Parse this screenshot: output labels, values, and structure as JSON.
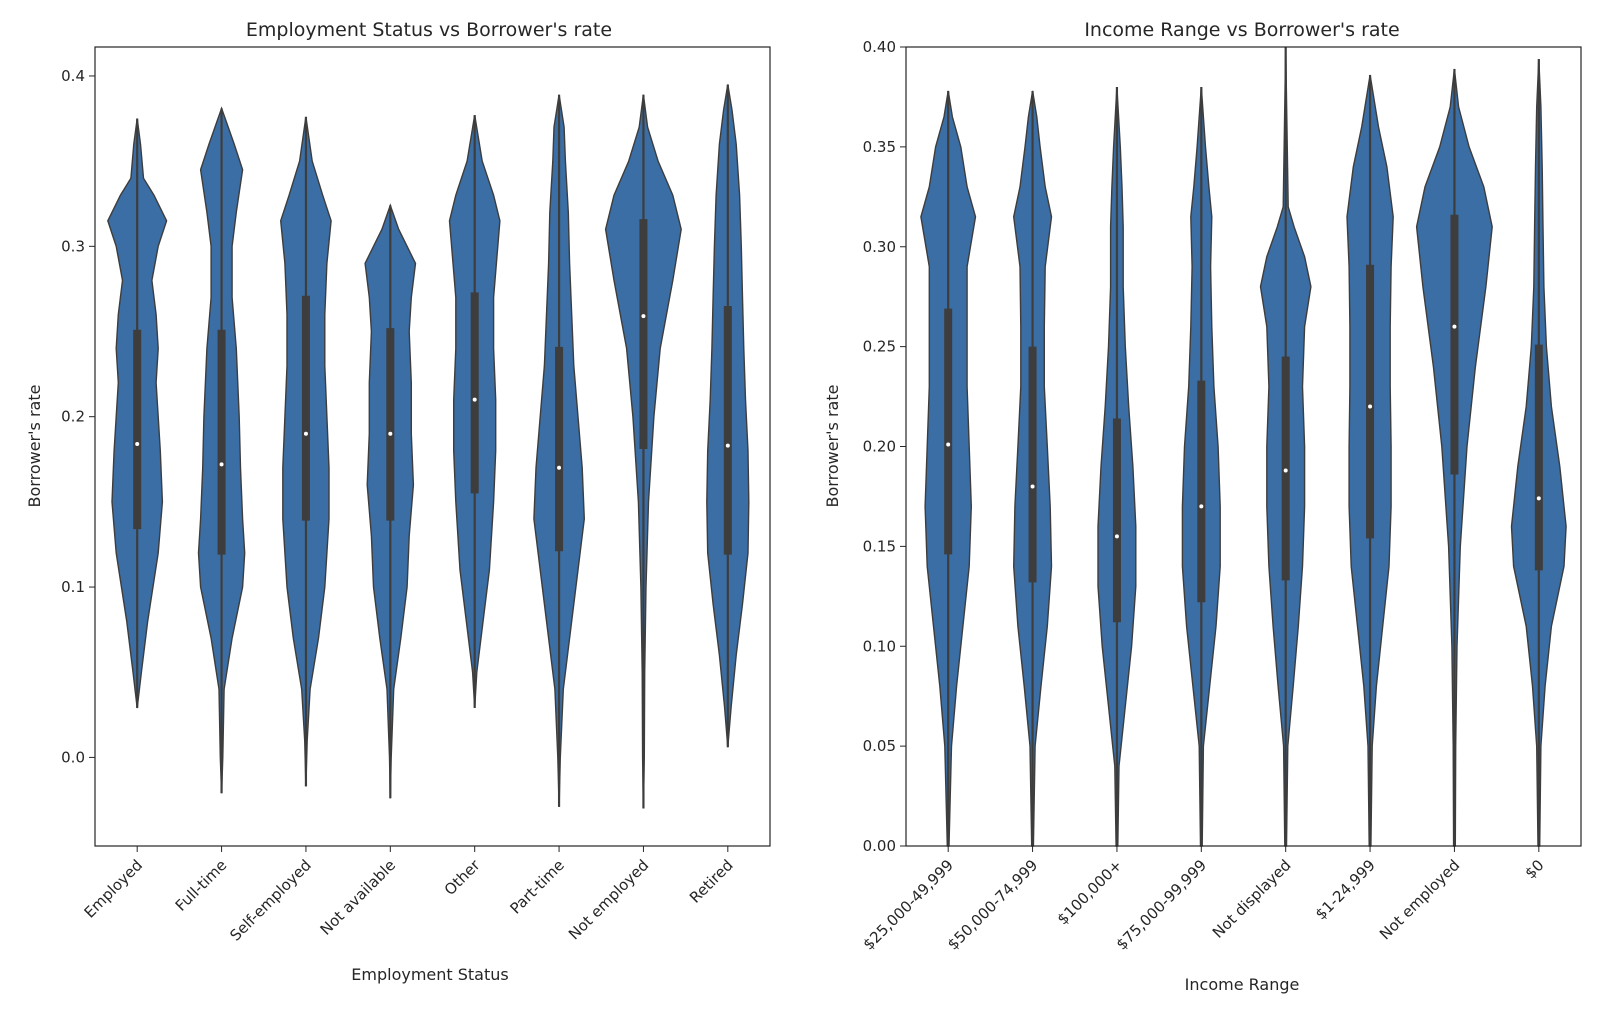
{
  "chart_data": [
    {
      "type": "violin",
      "title": "Employment Status vs Borrower's rate",
      "xlabel": "Employment Status",
      "ylabel": "Borrower's rate",
      "ylim": [
        -0.052,
        0.417
      ],
      "yticks": [
        "0.0",
        "0.1",
        "0.2",
        "0.3",
        "0.4"
      ],
      "ytick_values": [
        0.0,
        0.1,
        0.2,
        0.3,
        0.4
      ],
      "color": "#3a6ea5",
      "categories": [
        "Employed",
        "Full-time",
        "Self-employed",
        "Not available",
        "Other",
        "Part-time",
        "Not employed",
        "Retired"
      ],
      "stats": [
        {
          "min": 0.029,
          "q1": 0.134,
          "median": 0.184,
          "q3": 0.251,
          "max": 0.375,
          "density": [
            [
              0.029,
              0.0
            ],
            [
              0.05,
              0.1
            ],
            [
              0.08,
              0.25
            ],
            [
              0.12,
              0.5
            ],
            [
              0.15,
              0.6
            ],
            [
              0.18,
              0.55
            ],
            [
              0.2,
              0.5
            ],
            [
              0.22,
              0.45
            ],
            [
              0.24,
              0.5
            ],
            [
              0.26,
              0.45
            ],
            [
              0.28,
              0.35
            ],
            [
              0.3,
              0.5
            ],
            [
              0.315,
              0.7
            ],
            [
              0.33,
              0.4
            ],
            [
              0.34,
              0.15
            ],
            [
              0.36,
              0.08
            ],
            [
              0.375,
              0.0
            ]
          ]
        },
        {
          "min": -0.021,
          "q1": 0.119,
          "median": 0.172,
          "q3": 0.251,
          "max": 0.381,
          "density": [
            [
              -0.021,
              0.0
            ],
            [
              0.0,
              0.03
            ],
            [
              0.04,
              0.06
            ],
            [
              0.07,
              0.25
            ],
            [
              0.1,
              0.5
            ],
            [
              0.12,
              0.55
            ],
            [
              0.14,
              0.5
            ],
            [
              0.17,
              0.45
            ],
            [
              0.2,
              0.42
            ],
            [
              0.24,
              0.35
            ],
            [
              0.27,
              0.25
            ],
            [
              0.3,
              0.25
            ],
            [
              0.32,
              0.35
            ],
            [
              0.345,
              0.5
            ],
            [
              0.36,
              0.3
            ],
            [
              0.381,
              0.0
            ]
          ]
        },
        {
          "min": -0.017,
          "q1": 0.139,
          "median": 0.19,
          "q3": 0.271,
          "max": 0.376,
          "density": [
            [
              -0.017,
              0.0
            ],
            [
              0.01,
              0.03
            ],
            [
              0.04,
              0.1
            ],
            [
              0.07,
              0.3
            ],
            [
              0.1,
              0.45
            ],
            [
              0.14,
              0.55
            ],
            [
              0.17,
              0.55
            ],
            [
              0.2,
              0.5
            ],
            [
              0.23,
              0.45
            ],
            [
              0.26,
              0.45
            ],
            [
              0.29,
              0.5
            ],
            [
              0.315,
              0.6
            ],
            [
              0.33,
              0.4
            ],
            [
              0.35,
              0.15
            ],
            [
              0.376,
              0.0
            ]
          ]
        },
        {
          "min": -0.024,
          "q1": 0.139,
          "median": 0.19,
          "q3": 0.252,
          "max": 0.324,
          "density": [
            [
              -0.024,
              0.0
            ],
            [
              0.0,
              0.02
            ],
            [
              0.04,
              0.08
            ],
            [
              0.07,
              0.25
            ],
            [
              0.1,
              0.4
            ],
            [
              0.13,
              0.45
            ],
            [
              0.16,
              0.55
            ],
            [
              0.19,
              0.5
            ],
            [
              0.22,
              0.5
            ],
            [
              0.25,
              0.45
            ],
            [
              0.27,
              0.5
            ],
            [
              0.29,
              0.6
            ],
            [
              0.3,
              0.4
            ],
            [
              0.31,
              0.2
            ],
            [
              0.324,
              0.0
            ]
          ]
        },
        {
          "min": 0.029,
          "q1": 0.155,
          "median": 0.21,
          "q3": 0.273,
          "max": 0.377,
          "density": [
            [
              0.029,
              0.0
            ],
            [
              0.05,
              0.05
            ],
            [
              0.08,
              0.2
            ],
            [
              0.11,
              0.35
            ],
            [
              0.15,
              0.45
            ],
            [
              0.18,
              0.5
            ],
            [
              0.21,
              0.5
            ],
            [
              0.24,
              0.45
            ],
            [
              0.27,
              0.45
            ],
            [
              0.3,
              0.55
            ],
            [
              0.315,
              0.6
            ],
            [
              0.33,
              0.45
            ],
            [
              0.35,
              0.18
            ],
            [
              0.377,
              0.0
            ]
          ]
        },
        {
          "min": -0.029,
          "q1": 0.121,
          "median": 0.17,
          "q3": 0.241,
          "max": 0.389,
          "density": [
            [
              -0.029,
              0.0
            ],
            [
              0.0,
              0.03
            ],
            [
              0.04,
              0.1
            ],
            [
              0.07,
              0.25
            ],
            [
              0.1,
              0.4
            ],
            [
              0.14,
              0.6
            ],
            [
              0.17,
              0.55
            ],
            [
              0.2,
              0.45
            ],
            [
              0.23,
              0.35
            ],
            [
              0.26,
              0.3
            ],
            [
              0.29,
              0.25
            ],
            [
              0.32,
              0.22
            ],
            [
              0.35,
              0.15
            ],
            [
              0.37,
              0.12
            ],
            [
              0.389,
              0.0
            ]
          ]
        },
        {
          "min": -0.03,
          "q1": 0.181,
          "median": 0.259,
          "q3": 0.316,
          "max": 0.389,
          "density": [
            [
              -0.03,
              0.0
            ],
            [
              0.0,
              0.02
            ],
            [
              0.05,
              0.03
            ],
            [
              0.1,
              0.06
            ],
            [
              0.15,
              0.12
            ],
            [
              0.2,
              0.25
            ],
            [
              0.24,
              0.4
            ],
            [
              0.28,
              0.7
            ],
            [
              0.31,
              0.9
            ],
            [
              0.33,
              0.7
            ],
            [
              0.35,
              0.35
            ],
            [
              0.37,
              0.1
            ],
            [
              0.389,
              0.0
            ]
          ]
        },
        {
          "min": 0.006,
          "q1": 0.119,
          "median": 0.183,
          "q3": 0.265,
          "max": 0.395,
          "density": [
            [
              0.006,
              0.0
            ],
            [
              0.03,
              0.08
            ],
            [
              0.06,
              0.2
            ],
            [
              0.09,
              0.35
            ],
            [
              0.12,
              0.48
            ],
            [
              0.15,
              0.5
            ],
            [
              0.18,
              0.48
            ],
            [
              0.21,
              0.42
            ],
            [
              0.24,
              0.38
            ],
            [
              0.27,
              0.35
            ],
            [
              0.3,
              0.32
            ],
            [
              0.33,
              0.28
            ],
            [
              0.36,
              0.2
            ],
            [
              0.38,
              0.1
            ],
            [
              0.395,
              0.0
            ]
          ]
        }
      ]
    },
    {
      "type": "violin",
      "title": "Income Range vs Borrower's rate",
      "xlabel": "Income Range",
      "ylabel": "Borrower's rate",
      "ylim": [
        0.0,
        0.4
      ],
      "yticks": [
        "0.00",
        "0.05",
        "0.10",
        "0.15",
        "0.20",
        "0.25",
        "0.30",
        "0.35",
        "0.40"
      ],
      "ytick_values": [
        0.0,
        0.05,
        0.1,
        0.15,
        0.2,
        0.25,
        0.3,
        0.35,
        0.4
      ],
      "color": "#3a6ea5",
      "categories": [
        "$25,000-49,999",
        "$50,000-74,999",
        "$100,000+",
        "$75,000-99,999",
        "Not displayed",
        "$1-24,999",
        "Not employed",
        "$0"
      ],
      "stats": [
        {
          "min": 0.0,
          "q1": 0.146,
          "median": 0.201,
          "q3": 0.269,
          "max": 0.378,
          "density": [
            [
              0.0,
              0.02
            ],
            [
              0.05,
              0.08
            ],
            [
              0.08,
              0.2
            ],
            [
              0.11,
              0.35
            ],
            [
              0.14,
              0.5
            ],
            [
              0.17,
              0.55
            ],
            [
              0.2,
              0.5
            ],
            [
              0.23,
              0.45
            ],
            [
              0.26,
              0.45
            ],
            [
              0.29,
              0.45
            ],
            [
              0.315,
              0.65
            ],
            [
              0.33,
              0.45
            ],
            [
              0.35,
              0.3
            ],
            [
              0.365,
              0.1
            ],
            [
              0.378,
              0.0
            ]
          ]
        },
        {
          "min": 0.0,
          "q1": 0.132,
          "median": 0.18,
          "q3": 0.25,
          "max": 0.378,
          "density": [
            [
              0.0,
              0.02
            ],
            [
              0.05,
              0.06
            ],
            [
              0.08,
              0.2
            ],
            [
              0.11,
              0.35
            ],
            [
              0.14,
              0.45
            ],
            [
              0.17,
              0.42
            ],
            [
              0.2,
              0.35
            ],
            [
              0.23,
              0.28
            ],
            [
              0.26,
              0.28
            ],
            [
              0.29,
              0.3
            ],
            [
              0.315,
              0.45
            ],
            [
              0.33,
              0.3
            ],
            [
              0.35,
              0.18
            ],
            [
              0.365,
              0.1
            ],
            [
              0.378,
              0.0
            ]
          ]
        },
        {
          "min": 0.0,
          "q1": 0.112,
          "median": 0.155,
          "q3": 0.214,
          "max": 0.38,
          "density": [
            [
              0.0,
              0.02
            ],
            [
              0.04,
              0.05
            ],
            [
              0.07,
              0.2
            ],
            [
              0.1,
              0.35
            ],
            [
              0.13,
              0.45
            ],
            [
              0.16,
              0.45
            ],
            [
              0.19,
              0.38
            ],
            [
              0.22,
              0.28
            ],
            [
              0.25,
              0.2
            ],
            [
              0.28,
              0.15
            ],
            [
              0.31,
              0.15
            ],
            [
              0.33,
              0.12
            ],
            [
              0.35,
              0.08
            ],
            [
              0.38,
              0.0
            ]
          ]
        },
        {
          "min": 0.0,
          "q1": 0.122,
          "median": 0.17,
          "q3": 0.233,
          "max": 0.38,
          "density": [
            [
              0.0,
              0.02
            ],
            [
              0.05,
              0.05
            ],
            [
              0.08,
              0.2
            ],
            [
              0.11,
              0.35
            ],
            [
              0.14,
              0.45
            ],
            [
              0.17,
              0.45
            ],
            [
              0.2,
              0.4
            ],
            [
              0.23,
              0.3
            ],
            [
              0.26,
              0.25
            ],
            [
              0.29,
              0.22
            ],
            [
              0.315,
              0.25
            ],
            [
              0.33,
              0.18
            ],
            [
              0.35,
              0.1
            ],
            [
              0.38,
              0.0
            ]
          ]
        },
        {
          "min": 0.0,
          "q1": 0.133,
          "median": 0.188,
          "q3": 0.245,
          "max": 0.4,
          "density": [
            [
              0.0,
              0.02
            ],
            [
              0.05,
              0.05
            ],
            [
              0.08,
              0.18
            ],
            [
              0.11,
              0.3
            ],
            [
              0.14,
              0.4
            ],
            [
              0.17,
              0.45
            ],
            [
              0.2,
              0.45
            ],
            [
              0.23,
              0.4
            ],
            [
              0.26,
              0.45
            ],
            [
              0.28,
              0.6
            ],
            [
              0.295,
              0.45
            ],
            [
              0.31,
              0.2
            ],
            [
              0.32,
              0.06
            ],
            [
              0.4,
              0.0
            ]
          ]
        },
        {
          "min": 0.0,
          "q1": 0.154,
          "median": 0.22,
          "q3": 0.291,
          "max": 0.386,
          "density": [
            [
              0.0,
              0.02
            ],
            [
              0.05,
              0.05
            ],
            [
              0.08,
              0.15
            ],
            [
              0.11,
              0.3
            ],
            [
              0.14,
              0.45
            ],
            [
              0.17,
              0.5
            ],
            [
              0.2,
              0.5
            ],
            [
              0.23,
              0.48
            ],
            [
              0.26,
              0.48
            ],
            [
              0.29,
              0.5
            ],
            [
              0.315,
              0.55
            ],
            [
              0.34,
              0.4
            ],
            [
              0.36,
              0.2
            ],
            [
              0.386,
              0.0
            ]
          ]
        },
        {
          "min": 0.0,
          "q1": 0.186,
          "median": 0.26,
          "q3": 0.316,
          "max": 0.389,
          "density": [
            [
              0.0,
              0.02
            ],
            [
              0.05,
              0.03
            ],
            [
              0.1,
              0.06
            ],
            [
              0.15,
              0.14
            ],
            [
              0.2,
              0.3
            ],
            [
              0.24,
              0.5
            ],
            [
              0.28,
              0.75
            ],
            [
              0.31,
              0.9
            ],
            [
              0.33,
              0.7
            ],
            [
              0.35,
              0.35
            ],
            [
              0.37,
              0.1
            ],
            [
              0.389,
              0.0
            ]
          ]
        },
        {
          "min": 0.0,
          "q1": 0.138,
          "median": 0.174,
          "q3": 0.251,
          "max": 0.394,
          "density": [
            [
              0.0,
              0.02
            ],
            [
              0.05,
              0.05
            ],
            [
              0.08,
              0.15
            ],
            [
              0.11,
              0.3
            ],
            [
              0.14,
              0.6
            ],
            [
              0.16,
              0.65
            ],
            [
              0.19,
              0.5
            ],
            [
              0.22,
              0.3
            ],
            [
              0.25,
              0.18
            ],
            [
              0.28,
              0.12
            ],
            [
              0.31,
              0.1
            ],
            [
              0.34,
              0.08
            ],
            [
              0.37,
              0.05
            ],
            [
              0.394,
              0.0
            ]
          ]
        }
      ]
    }
  ]
}
